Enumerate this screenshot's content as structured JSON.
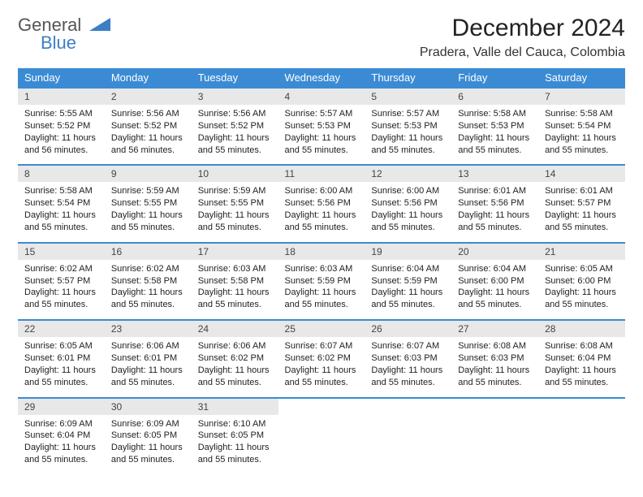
{
  "logo": {
    "part1": "General",
    "part2": "Blue"
  },
  "title": "December 2024",
  "location": "Pradera, Valle del Cauca, Colombia",
  "colors": {
    "header_bg": "#3b8bd4",
    "header_text": "#ffffff",
    "daynum_bg": "#e8e8e8",
    "week_border": "#3b8bd4",
    "logo_accent": "#3b7fc4"
  },
  "day_headers": [
    "Sunday",
    "Monday",
    "Tuesday",
    "Wednesday",
    "Thursday",
    "Friday",
    "Saturday"
  ],
  "weeks": [
    [
      {
        "n": "1",
        "sr": "Sunrise: 5:55 AM",
        "ss": "Sunset: 5:52 PM",
        "dl1": "Daylight: 11 hours",
        "dl2": "and 56 minutes."
      },
      {
        "n": "2",
        "sr": "Sunrise: 5:56 AM",
        "ss": "Sunset: 5:52 PM",
        "dl1": "Daylight: 11 hours",
        "dl2": "and 56 minutes."
      },
      {
        "n": "3",
        "sr": "Sunrise: 5:56 AM",
        "ss": "Sunset: 5:52 PM",
        "dl1": "Daylight: 11 hours",
        "dl2": "and 55 minutes."
      },
      {
        "n": "4",
        "sr": "Sunrise: 5:57 AM",
        "ss": "Sunset: 5:53 PM",
        "dl1": "Daylight: 11 hours",
        "dl2": "and 55 minutes."
      },
      {
        "n": "5",
        "sr": "Sunrise: 5:57 AM",
        "ss": "Sunset: 5:53 PM",
        "dl1": "Daylight: 11 hours",
        "dl2": "and 55 minutes."
      },
      {
        "n": "6",
        "sr": "Sunrise: 5:58 AM",
        "ss": "Sunset: 5:53 PM",
        "dl1": "Daylight: 11 hours",
        "dl2": "and 55 minutes."
      },
      {
        "n": "7",
        "sr": "Sunrise: 5:58 AM",
        "ss": "Sunset: 5:54 PM",
        "dl1": "Daylight: 11 hours",
        "dl2": "and 55 minutes."
      }
    ],
    [
      {
        "n": "8",
        "sr": "Sunrise: 5:58 AM",
        "ss": "Sunset: 5:54 PM",
        "dl1": "Daylight: 11 hours",
        "dl2": "and 55 minutes."
      },
      {
        "n": "9",
        "sr": "Sunrise: 5:59 AM",
        "ss": "Sunset: 5:55 PM",
        "dl1": "Daylight: 11 hours",
        "dl2": "and 55 minutes."
      },
      {
        "n": "10",
        "sr": "Sunrise: 5:59 AM",
        "ss": "Sunset: 5:55 PM",
        "dl1": "Daylight: 11 hours",
        "dl2": "and 55 minutes."
      },
      {
        "n": "11",
        "sr": "Sunrise: 6:00 AM",
        "ss": "Sunset: 5:56 PM",
        "dl1": "Daylight: 11 hours",
        "dl2": "and 55 minutes."
      },
      {
        "n": "12",
        "sr": "Sunrise: 6:00 AM",
        "ss": "Sunset: 5:56 PM",
        "dl1": "Daylight: 11 hours",
        "dl2": "and 55 minutes."
      },
      {
        "n": "13",
        "sr": "Sunrise: 6:01 AM",
        "ss": "Sunset: 5:56 PM",
        "dl1": "Daylight: 11 hours",
        "dl2": "and 55 minutes."
      },
      {
        "n": "14",
        "sr": "Sunrise: 6:01 AM",
        "ss": "Sunset: 5:57 PM",
        "dl1": "Daylight: 11 hours",
        "dl2": "and 55 minutes."
      }
    ],
    [
      {
        "n": "15",
        "sr": "Sunrise: 6:02 AM",
        "ss": "Sunset: 5:57 PM",
        "dl1": "Daylight: 11 hours",
        "dl2": "and 55 minutes."
      },
      {
        "n": "16",
        "sr": "Sunrise: 6:02 AM",
        "ss": "Sunset: 5:58 PM",
        "dl1": "Daylight: 11 hours",
        "dl2": "and 55 minutes."
      },
      {
        "n": "17",
        "sr": "Sunrise: 6:03 AM",
        "ss": "Sunset: 5:58 PM",
        "dl1": "Daylight: 11 hours",
        "dl2": "and 55 minutes."
      },
      {
        "n": "18",
        "sr": "Sunrise: 6:03 AM",
        "ss": "Sunset: 5:59 PM",
        "dl1": "Daylight: 11 hours",
        "dl2": "and 55 minutes."
      },
      {
        "n": "19",
        "sr": "Sunrise: 6:04 AM",
        "ss": "Sunset: 5:59 PM",
        "dl1": "Daylight: 11 hours",
        "dl2": "and 55 minutes."
      },
      {
        "n": "20",
        "sr": "Sunrise: 6:04 AM",
        "ss": "Sunset: 6:00 PM",
        "dl1": "Daylight: 11 hours",
        "dl2": "and 55 minutes."
      },
      {
        "n": "21",
        "sr": "Sunrise: 6:05 AM",
        "ss": "Sunset: 6:00 PM",
        "dl1": "Daylight: 11 hours",
        "dl2": "and 55 minutes."
      }
    ],
    [
      {
        "n": "22",
        "sr": "Sunrise: 6:05 AM",
        "ss": "Sunset: 6:01 PM",
        "dl1": "Daylight: 11 hours",
        "dl2": "and 55 minutes."
      },
      {
        "n": "23",
        "sr": "Sunrise: 6:06 AM",
        "ss": "Sunset: 6:01 PM",
        "dl1": "Daylight: 11 hours",
        "dl2": "and 55 minutes."
      },
      {
        "n": "24",
        "sr": "Sunrise: 6:06 AM",
        "ss": "Sunset: 6:02 PM",
        "dl1": "Daylight: 11 hours",
        "dl2": "and 55 minutes."
      },
      {
        "n": "25",
        "sr": "Sunrise: 6:07 AM",
        "ss": "Sunset: 6:02 PM",
        "dl1": "Daylight: 11 hours",
        "dl2": "and 55 minutes."
      },
      {
        "n": "26",
        "sr": "Sunrise: 6:07 AM",
        "ss": "Sunset: 6:03 PM",
        "dl1": "Daylight: 11 hours",
        "dl2": "and 55 minutes."
      },
      {
        "n": "27",
        "sr": "Sunrise: 6:08 AM",
        "ss": "Sunset: 6:03 PM",
        "dl1": "Daylight: 11 hours",
        "dl2": "and 55 minutes."
      },
      {
        "n": "28",
        "sr": "Sunrise: 6:08 AM",
        "ss": "Sunset: 6:04 PM",
        "dl1": "Daylight: 11 hours",
        "dl2": "and 55 minutes."
      }
    ],
    [
      {
        "n": "29",
        "sr": "Sunrise: 6:09 AM",
        "ss": "Sunset: 6:04 PM",
        "dl1": "Daylight: 11 hours",
        "dl2": "and 55 minutes."
      },
      {
        "n": "30",
        "sr": "Sunrise: 6:09 AM",
        "ss": "Sunset: 6:05 PM",
        "dl1": "Daylight: 11 hours",
        "dl2": "and 55 minutes."
      },
      {
        "n": "31",
        "sr": "Sunrise: 6:10 AM",
        "ss": "Sunset: 6:05 PM",
        "dl1": "Daylight: 11 hours",
        "dl2": "and 55 minutes."
      },
      {
        "empty": true
      },
      {
        "empty": true
      },
      {
        "empty": true
      },
      {
        "empty": true
      }
    ]
  ]
}
